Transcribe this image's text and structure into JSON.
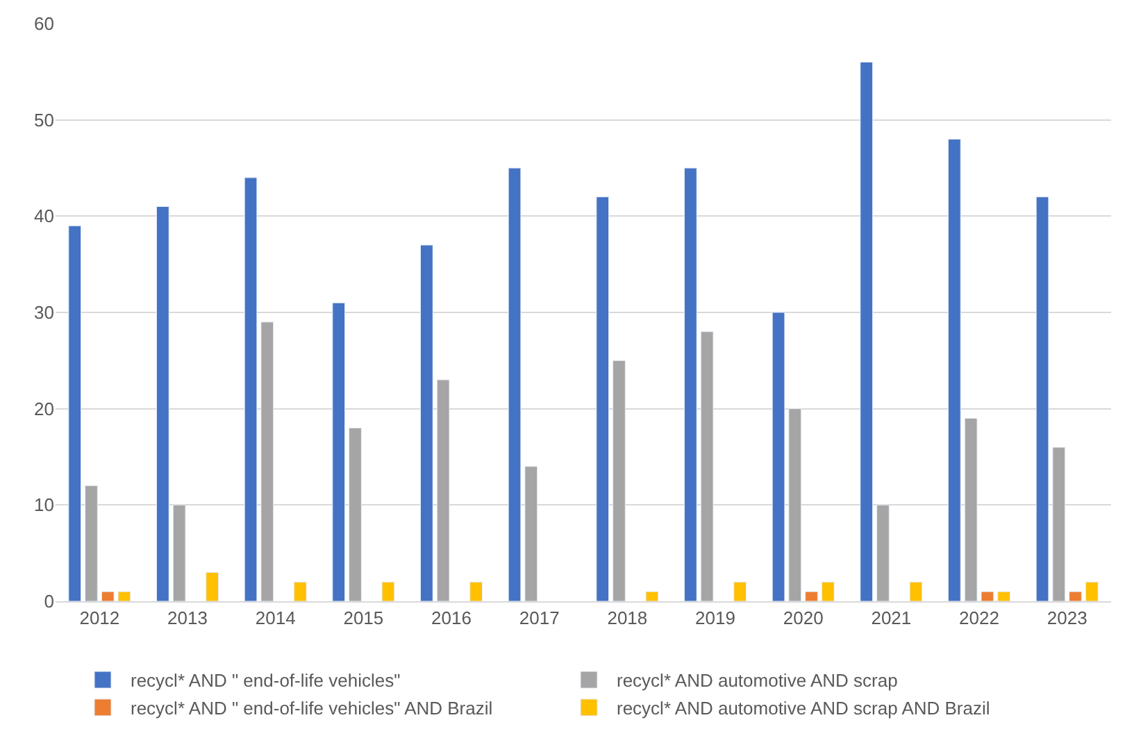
{
  "chart_data": {
    "type": "bar",
    "categories": [
      "2012",
      "2013",
      "2014",
      "2015",
      "2016",
      "2017",
      "2018",
      "2019",
      "2020",
      "2021",
      "2022",
      "2023"
    ],
    "series": [
      {
        "name": "recycl* AND \" end-of-life vehicles\"",
        "color": "#4472c4",
        "values": [
          39,
          41,
          44,
          31,
          37,
          45,
          42,
          45,
          30,
          56,
          48,
          42
        ]
      },
      {
        "name": "recycl* AND automotive AND scrap",
        "color": "#a5a5a5",
        "values": [
          12,
          10,
          29,
          18,
          23,
          14,
          25,
          28,
          20,
          10,
          19,
          16
        ]
      },
      {
        "name": "recycl* AND \" end-of-life vehicles\" AND Brazil",
        "color": "#ed7d31",
        "values": [
          1,
          null,
          null,
          null,
          null,
          null,
          null,
          null,
          1,
          null,
          1,
          1
        ]
      },
      {
        "name": "recycl* AND automotive AND scrap AND Brazil",
        "color": "#ffc000",
        "values": [
          1,
          3,
          2,
          2,
          2,
          null,
          1,
          2,
          2,
          2,
          1,
          2
        ]
      }
    ],
    "ylim": [
      0,
      60
    ],
    "yticks": [
      0,
      10,
      20,
      30,
      40,
      50,
      60
    ],
    "grid": "y",
    "legend": "bottom"
  }
}
